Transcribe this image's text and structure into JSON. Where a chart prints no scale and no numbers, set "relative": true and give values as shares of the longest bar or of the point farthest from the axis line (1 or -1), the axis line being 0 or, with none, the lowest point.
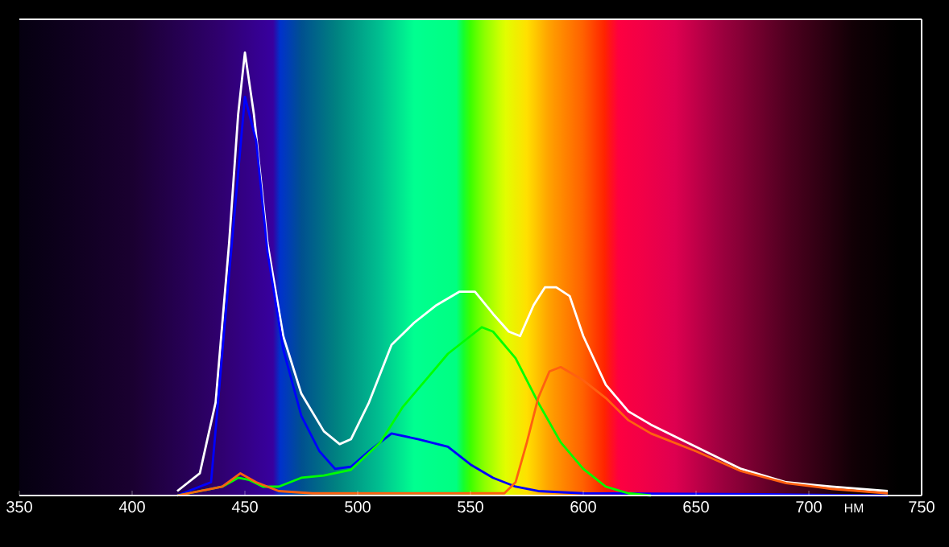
{
  "chart_data": {
    "type": "line",
    "relative": true,
    "xlabel": "НМ",
    "xlim": [
      350,
      750
    ],
    "xticks": [
      350,
      400,
      450,
      500,
      550,
      600,
      650,
      700,
      750
    ],
    "grid": false,
    "marker": "none",
    "line_style": "solid",
    "series": [
      {
        "color": "#ffffff",
        "x": [
          420,
          430,
          437,
          443,
          447,
          450,
          454,
          460,
          467,
          475,
          485,
          492,
          497,
          505,
          515,
          525,
          535,
          545,
          552,
          560,
          567,
          572,
          578,
          583,
          588,
          594,
          600,
          610,
          620,
          630,
          650,
          670,
          690,
          710,
          735
        ],
        "values": [
          0.01,
          0.05,
          0.21,
          0.57,
          0.86,
          1.0,
          0.86,
          0.57,
          0.36,
          0.23,
          0.145,
          0.116,
          0.127,
          0.21,
          0.34,
          0.39,
          0.43,
          0.46,
          0.46,
          0.41,
          0.37,
          0.36,
          0.43,
          0.47,
          0.47,
          0.45,
          0.36,
          0.25,
          0.19,
          0.16,
          0.11,
          0.06,
          0.03,
          0.02,
          0.01
        ]
      },
      {
        "color": "#0000ff",
        "x": [
          420,
          435,
          443,
          450,
          455,
          460,
          467,
          475,
          483,
          490,
          497,
          505,
          515,
          527,
          540,
          550,
          560,
          570,
          580,
          600,
          680,
          735
        ],
        "values": [
          0.0,
          0.03,
          0.5,
          0.9,
          0.8,
          0.55,
          0.33,
          0.18,
          0.1,
          0.06,
          0.065,
          0.1,
          0.14,
          0.127,
          0.11,
          0.07,
          0.04,
          0.02,
          0.01,
          0.005,
          0.003,
          0.0
        ]
      },
      {
        "color": "#00ff00",
        "x": [
          420,
          440,
          447,
          452,
          458,
          465,
          475,
          485,
          497,
          510,
          520,
          530,
          540,
          550,
          555,
          560,
          570,
          580,
          590,
          600,
          610,
          620,
          630
        ],
        "values": [
          0.0,
          0.02,
          0.04,
          0.035,
          0.02,
          0.02,
          0.04,
          0.045,
          0.058,
          0.12,
          0.2,
          0.26,
          0.32,
          0.36,
          0.38,
          0.37,
          0.31,
          0.21,
          0.12,
          0.06,
          0.02,
          0.005,
          0.0
        ]
      },
      {
        "color": "#ff6010",
        "x": [
          420,
          440,
          448,
          455,
          465,
          480,
          530,
          565,
          570,
          575,
          580,
          585,
          590,
          600,
          610,
          620,
          630,
          650,
          670,
          690,
          710,
          735
        ],
        "values": [
          0.0,
          0.02,
          0.05,
          0.03,
          0.01,
          0.005,
          0.005,
          0.005,
          0.03,
          0.12,
          0.22,
          0.28,
          0.29,
          0.26,
          0.22,
          0.17,
          0.14,
          0.1,
          0.055,
          0.028,
          0.015,
          0.005
        ]
      }
    ]
  }
}
